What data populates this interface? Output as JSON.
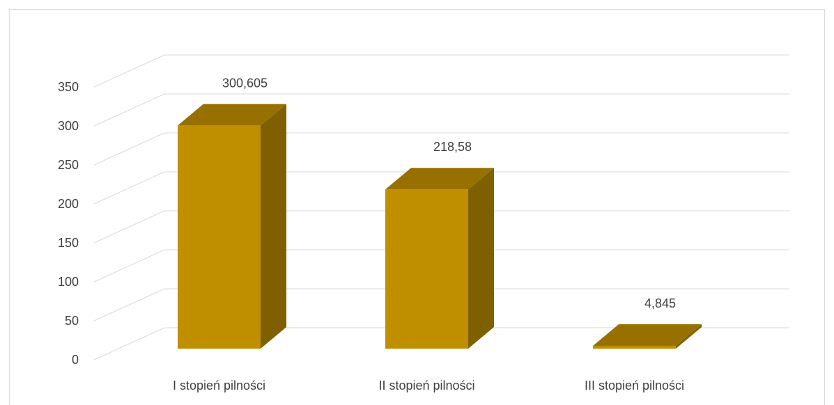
{
  "chart_data": {
    "type": "bar",
    "categories": [
      "I stopień pilności",
      "II stopień pilności",
      "III stopień pilności"
    ],
    "values": [
      300.605,
      218.58,
      4.845
    ],
    "data_labels": [
      "300,605",
      "218,58",
      "4,845"
    ],
    "y_ticks": [
      "0",
      "50",
      "100",
      "150",
      "200",
      "250",
      "300",
      "350"
    ],
    "ylim": [
      0,
      350
    ],
    "grid": true,
    "legend": "none",
    "three_d": true,
    "colors": {
      "front": "#bf8f00",
      "top": "#977000",
      "side": "#7f6000",
      "grid": "#d9d9d9",
      "text": "#404040"
    }
  }
}
